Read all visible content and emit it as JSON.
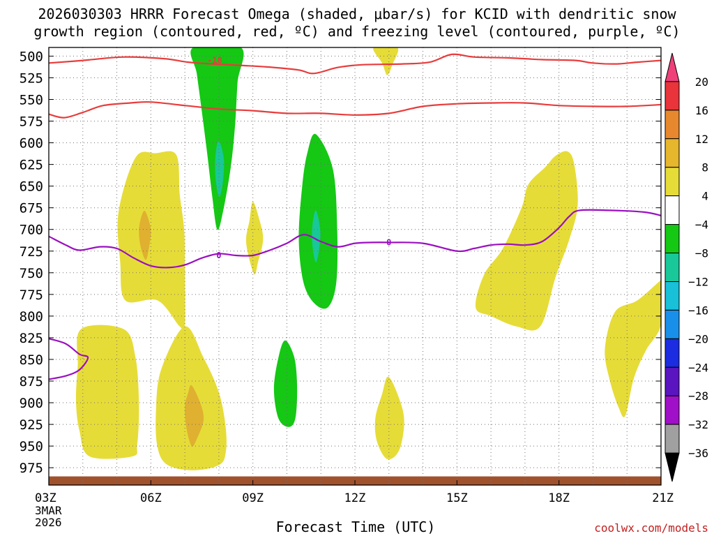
{
  "title_line1": "2026030303 HRRR Forecast Omega (shaded, μbar/s) for KCID with dendritic snow",
  "title_line2": "growth region (contoured, red, ºC) and freezing level (contoured, purple, ºC)",
  "xlabel": "Forecast Time (UTC)",
  "credit": "coolwx.com/models",
  "chart_data": {
    "type": "contour",
    "x_ticks": [
      {
        "hour": 0,
        "label": "03Z",
        "sub": [
          "3MAR",
          "2026"
        ]
      },
      {
        "hour": 3,
        "label": "06Z"
      },
      {
        "hour": 6,
        "label": "09Z"
      },
      {
        "hour": 9,
        "label": "12Z"
      },
      {
        "hour": 12,
        "label": "15Z"
      },
      {
        "hour": 15,
        "label": "18Z"
      },
      {
        "hour": 18,
        "label": "21Z"
      }
    ],
    "xlim": [
      0,
      18
    ],
    "ylim": [
      490,
      995
    ],
    "y_ticks": [
      500,
      525,
      550,
      575,
      600,
      625,
      650,
      675,
      700,
      725,
      750,
      775,
      800,
      825,
      850,
      875,
      900,
      925,
      950,
      975
    ],
    "colorbar": {
      "levels": [
        20,
        16,
        12,
        8,
        4,
        -4,
        -8,
        -12,
        -16,
        -20,
        -24,
        -28,
        -32,
        -36
      ],
      "colors": [
        "#f0407a",
        "#e8343a",
        "#e8882e",
        "#e6b62c",
        "#e6dc38",
        "#ffffff",
        "#14c814",
        "#18c898",
        "#18c0d8",
        "#1890ea",
        "#1c2ce0",
        "#5a14c0",
        "#a010c8",
        "#a0a0a0",
        "#000000"
      ]
    },
    "omega_regions": [
      {
        "level": "4-8",
        "color": "#e6dc38",
        "points": [
          [
            3.15,
            612
          ],
          [
            3.75,
            614
          ],
          [
            3.85,
            660
          ],
          [
            3.98,
            700
          ],
          [
            4.0,
            745
          ],
          [
            4.0,
            810
          ],
          [
            3.85,
            812
          ],
          [
            3.2,
            782
          ],
          [
            2.25,
            782
          ],
          [
            2.1,
            738
          ],
          [
            2.05,
            680
          ],
          [
            2.55,
            617
          ]
        ]
      },
      {
        "level": "8-12",
        "color": "#e0b030",
        "points": [
          [
            2.85,
            680
          ],
          [
            3.0,
            700
          ],
          [
            2.95,
            720
          ],
          [
            2.85,
            735
          ],
          [
            2.7,
            720
          ],
          [
            2.65,
            700
          ],
          [
            2.75,
            682
          ]
        ]
      },
      {
        "level": "4-8",
        "color": "#e6dc38",
        "points": [
          [
            0.95,
            815
          ],
          [
            2.2,
            815
          ],
          [
            2.55,
            848
          ],
          [
            2.65,
            902
          ],
          [
            2.6,
            948
          ],
          [
            2.45,
            962
          ],
          [
            1.2,
            962
          ],
          [
            0.9,
            932
          ],
          [
            0.8,
            898
          ],
          [
            0.85,
            858
          ]
        ]
      },
      {
        "level": "4-8",
        "color": "#e6dc38",
        "points": [
          [
            4.0,
            812
          ],
          [
            4.55,
            848
          ],
          [
            5.0,
            888
          ],
          [
            5.2,
            928
          ],
          [
            5.2,
            958
          ],
          [
            5.0,
            972
          ],
          [
            4.25,
            978
          ],
          [
            3.5,
            972
          ],
          [
            3.2,
            952
          ],
          [
            3.15,
            912
          ],
          [
            3.3,
            862
          ]
        ]
      },
      {
        "level": "8-12",
        "color": "#e0b030",
        "points": [
          [
            4.2,
            880
          ],
          [
            4.45,
            900
          ],
          [
            4.55,
            920
          ],
          [
            4.35,
            942
          ],
          [
            4.2,
            950
          ],
          [
            4.05,
            930
          ],
          [
            4.0,
            905
          ],
          [
            4.1,
            888
          ]
        ]
      },
      {
        "level": "4-8",
        "color": "#e6dc38",
        "points": [
          [
            6.0,
            668
          ],
          [
            6.2,
            690
          ],
          [
            6.3,
            712
          ],
          [
            6.15,
            738
          ],
          [
            6.05,
            752
          ],
          [
            5.9,
            735
          ],
          [
            5.8,
            712
          ],
          [
            5.9,
            690
          ]
        ]
      },
      {
        "level": "4-8",
        "color": "#e6dc38",
        "points": [
          [
            9.55,
            490
          ],
          [
            10.25,
            490
          ],
          [
            10.1,
            510
          ],
          [
            9.95,
            522
          ],
          [
            9.8,
            508
          ]
        ]
      },
      {
        "level": "4-8",
        "color": "#e6dc38",
        "points": [
          [
            9.98,
            870
          ],
          [
            10.3,
            895
          ],
          [
            10.45,
            922
          ],
          [
            10.3,
            955
          ],
          [
            9.95,
            965
          ],
          [
            9.65,
            945
          ],
          [
            9.6,
            918
          ],
          [
            9.8,
            890
          ]
        ]
      },
      {
        "level": "4-8",
        "color": "#e6dc38",
        "points": [
          [
            14.6,
            628
          ],
          [
            14.9,
            615
          ],
          [
            15.25,
            610
          ],
          [
            15.45,
            625
          ],
          [
            15.55,
            672
          ],
          [
            15.3,
            712
          ],
          [
            14.9,
            755
          ],
          [
            14.45,
            812
          ],
          [
            13.75,
            812
          ],
          [
            13.0,
            800
          ],
          [
            12.55,
            790
          ],
          [
            12.8,
            752
          ],
          [
            13.35,
            722
          ],
          [
            13.9,
            675
          ],
          [
            14.1,
            648
          ]
        ]
      },
      {
        "level": "4-8",
        "color": "#e6dc38",
        "points": [
          [
            17.95,
            760
          ],
          [
            18.0,
            760
          ],
          [
            18.0,
            810
          ],
          [
            17.55,
            840
          ],
          [
            17.2,
            872
          ],
          [
            16.95,
            915
          ],
          [
            16.75,
            905
          ],
          [
            16.5,
            875
          ],
          [
            16.35,
            838
          ],
          [
            16.65,
            795
          ],
          [
            17.3,
            782
          ]
        ]
      },
      {
        "level": "-4 to -8",
        "color": "#14c814",
        "points": [
          [
            4.25,
            490
          ],
          [
            5.65,
            490
          ],
          [
            5.55,
            530
          ],
          [
            5.48,
            578
          ],
          [
            5.35,
            628
          ],
          [
            5.12,
            680
          ],
          [
            4.95,
            700
          ],
          [
            4.8,
            660
          ],
          [
            4.65,
            610
          ],
          [
            4.48,
            558
          ],
          [
            4.35,
            520
          ]
        ]
      },
      {
        "level": "-8 to -12",
        "color": "#18c898",
        "points": [
          [
            5.0,
            598
          ],
          [
            5.15,
            620
          ],
          [
            5.1,
            650
          ],
          [
            5.0,
            662
          ],
          [
            4.9,
            640
          ],
          [
            4.9,
            615
          ]
        ]
      },
      {
        "level": "-4 to -8",
        "color": "#14c814",
        "points": [
          [
            7.85,
            590
          ],
          [
            8.35,
            630
          ],
          [
            8.48,
            700
          ],
          [
            8.45,
            762
          ],
          [
            8.2,
            790
          ],
          [
            7.8,
            785
          ],
          [
            7.48,
            760
          ],
          [
            7.35,
            710
          ],
          [
            7.45,
            650
          ],
          [
            7.6,
            612
          ]
        ]
      },
      {
        "level": "-8 to -12",
        "color": "#18c898",
        "points": [
          [
            7.85,
            678
          ],
          [
            7.98,
            700
          ],
          [
            7.95,
            722
          ],
          [
            7.85,
            738
          ],
          [
            7.75,
            718
          ],
          [
            7.75,
            696
          ]
        ]
      },
      {
        "level": "-4 to -8",
        "color": "#14c814",
        "points": [
          [
            6.95,
            828
          ],
          [
            7.22,
            848
          ],
          [
            7.3,
            882
          ],
          [
            7.25,
            918
          ],
          [
            7.05,
            928
          ],
          [
            6.75,
            918
          ],
          [
            6.62,
            884
          ],
          [
            6.75,
            848
          ]
        ]
      }
    ],
    "dgz_contours": [
      {
        "label": "-18",
        "label_at": [
          4.88,
          505
        ],
        "points": [
          [
            0,
            508
          ],
          [
            1.0,
            505
          ],
          [
            2.2,
            501
          ],
          [
            3.4,
            503
          ],
          [
            4.1,
            507
          ],
          [
            4.8,
            509
          ],
          [
            5.8,
            511
          ],
          [
            6.6,
            513
          ],
          [
            7.35,
            516
          ],
          [
            7.8,
            520
          ],
          [
            8.5,
            513
          ],
          [
            9.2,
            510
          ],
          [
            10.4,
            509
          ],
          [
            11.2,
            507
          ],
          [
            11.85,
            498
          ],
          [
            12.5,
            501
          ],
          [
            13.5,
            502
          ],
          [
            14.5,
            504
          ],
          [
            15.5,
            505
          ],
          [
            16.0,
            508
          ],
          [
            16.7,
            509
          ],
          [
            17.3,
            507
          ],
          [
            18,
            505
          ]
        ]
      },
      {
        "label": "",
        "points": [
          [
            0,
            567
          ],
          [
            0.45,
            571
          ],
          [
            1.0,
            565
          ],
          [
            1.6,
            557
          ],
          [
            2.4,
            554
          ],
          [
            3.0,
            553
          ],
          [
            4.0,
            557
          ],
          [
            5.0,
            561
          ],
          [
            6.0,
            563
          ],
          [
            7.0,
            566
          ],
          [
            8.0,
            566
          ],
          [
            9.0,
            568
          ],
          [
            10.0,
            566
          ],
          [
            11.0,
            558
          ],
          [
            12.0,
            555
          ],
          [
            13.0,
            554
          ],
          [
            14.0,
            554
          ],
          [
            15.0,
            557
          ],
          [
            16.0,
            558
          ],
          [
            17.0,
            558
          ],
          [
            18,
            556
          ]
        ]
      }
    ],
    "freezing_contours": [
      {
        "label": "0",
        "label_at": [
          5.0,
          730
        ],
        "points": [
          [
            0,
            708
          ],
          [
            0.5,
            718
          ],
          [
            0.9,
            724
          ],
          [
            1.5,
            720
          ],
          [
            2.0,
            722
          ],
          [
            2.5,
            733
          ],
          [
            3.0,
            742
          ],
          [
            3.5,
            744
          ],
          [
            4.0,
            741
          ],
          [
            4.5,
            733
          ],
          [
            5.0,
            728
          ],
          [
            5.5,
            730
          ],
          [
            6.0,
            730
          ],
          [
            6.5,
            724
          ],
          [
            7.0,
            716
          ],
          [
            7.5,
            706
          ],
          [
            8.0,
            714
          ],
          [
            8.5,
            720
          ],
          [
            9.0,
            716
          ],
          [
            9.5,
            715
          ],
          [
            10.0,
            715
          ],
          [
            11.0,
            716
          ],
          [
            12.0,
            725
          ],
          [
            12.5,
            722
          ],
          [
            13.0,
            718
          ],
          [
            13.5,
            717
          ],
          [
            14.0,
            718
          ],
          [
            14.5,
            714
          ],
          [
            15.0,
            698
          ],
          [
            15.3,
            685
          ],
          [
            15.6,
            678
          ],
          [
            16.5,
            678
          ],
          [
            17.5,
            680
          ],
          [
            18,
            684
          ]
        ]
      },
      {
        "label": "0",
        "label_at": [
          10.0,
          715
        ],
        "points": []
      },
      {
        "label": "",
        "points": [
          [
            0,
            826
          ],
          [
            0.5,
            832
          ],
          [
            0.9,
            844
          ],
          [
            1.15,
            848
          ],
          [
            0.9,
            862
          ],
          [
            0.5,
            869
          ],
          [
            0,
            873
          ]
        ]
      }
    ],
    "ground_band_top": 985
  }
}
